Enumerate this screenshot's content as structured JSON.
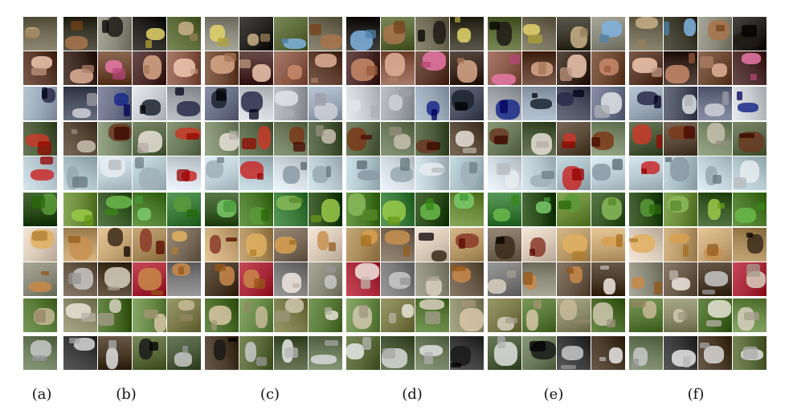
{
  "panel_labels": [
    "(a)",
    "(b)",
    "(c)",
    "(d)",
    "(e)",
    "(f)"
  ],
  "rows": [
    {
      "category": "bird",
      "colors": [
        "#6f6a55",
        "#3c3a2c",
        "#8a8a7c",
        "#262420",
        "#5c6a3a"
      ],
      "accent": [
        "#c9b08a",
        "#7fb4e0",
        "#a8744c",
        "#1d1a16",
        "#e3d36a"
      ]
    },
    {
      "category": "person",
      "colors": [
        "#5a3b2c",
        "#3a2a22",
        "#6e4a35",
        "#4a2c2a",
        "#8a5a4a"
      ],
      "accent": [
        "#d9a88a",
        "#f0c8b0",
        "#c88a6a",
        "#e0b098",
        "#e878a8"
      ]
    },
    {
      "category": "car",
      "colors": [
        "#9aa8b8",
        "#4a5060",
        "#6a7088",
        "#c8ccd0",
        "#a0a4a8"
      ],
      "accent": [
        "#1a2a8a",
        "#1c2430",
        "#2a2a4a",
        "#e0e4e8",
        "#d0d0d8"
      ]
    },
    {
      "category": "horse",
      "colors": [
        "#4a5a3a",
        "#5a4a3a",
        "#7a8a6a",
        "#5a6a4a",
        "#6a7a5a"
      ],
      "accent": [
        "#c8c0b0",
        "#6a3a22",
        "#e8e0d8",
        "#c83a2a",
        "#7a3a1a"
      ]
    },
    {
      "category": "airplane",
      "colors": [
        "#b8c8d0",
        "#a8bcc4",
        "#c0d0d8",
        "#b0c4cc",
        "#d0d8e0"
      ],
      "accent": [
        "#8a9aa4",
        "#98a8b0",
        "#e8ecf0",
        "#a0b0b8",
        "#c82a2a"
      ]
    },
    {
      "category": "plant",
      "colors": [
        "#2a4a1a",
        "#6a8a3a",
        "#3a5a2a",
        "#4a7a2a",
        "#3a7a3a"
      ],
      "accent": [
        "#5a9a3a",
        "#8aba5a",
        "#9aca4a",
        "#6aba4a",
        "#7aca6a"
      ]
    },
    {
      "category": "chair",
      "colors": [
        "#d8c8b8",
        "#b89a6a",
        "#c8a878",
        "#a88a5a",
        "#7a6a5a"
      ],
      "accent": [
        "#8a3a2a",
        "#e0b060",
        "#d8a050",
        "#c89050",
        "#3a2a1a"
      ]
    },
    {
      "category": "dog",
      "colors": [
        "#8a8a7a",
        "#6a5a4a",
        "#4a3a2a",
        "#a82a3a",
        "#7a7a7a"
      ],
      "accent": [
        "#d8d0c0",
        "#c8884a",
        "#c8884a",
        "#f0e8e0",
        "#c8c8c8"
      ]
    },
    {
      "category": "sheep",
      "colors": [
        "#5a7a3a",
        "#8a8a6a",
        "#4a6a2a",
        "#6a8a4a",
        "#7a7a4a"
      ],
      "accent": [
        "#e8e4d8",
        "#d8d0c0",
        "#d8c8a8",
        "#c8b898",
        "#d0c8b0"
      ]
    },
    {
      "category": "animal",
      "colors": [
        "#6a7a5a",
        "#3a3a3a",
        "#4a3a2a",
        "#5a6a3a",
        "#4a5a3a"
      ],
      "accent": [
        "#e8e8e8",
        "#d8d8d8",
        "#e0e0e0",
        "#1a1a1a",
        "#c8c8c8"
      ]
    }
  ],
  "panels": [
    {
      "cols": 1,
      "seed": 1
    },
    {
      "cols": 4,
      "seed": 2
    },
    {
      "cols": 4,
      "seed": 3
    },
    {
      "cols": 4,
      "seed": 4
    },
    {
      "cols": 4,
      "seed": 5
    },
    {
      "cols": 4,
      "seed": 6
    }
  ]
}
